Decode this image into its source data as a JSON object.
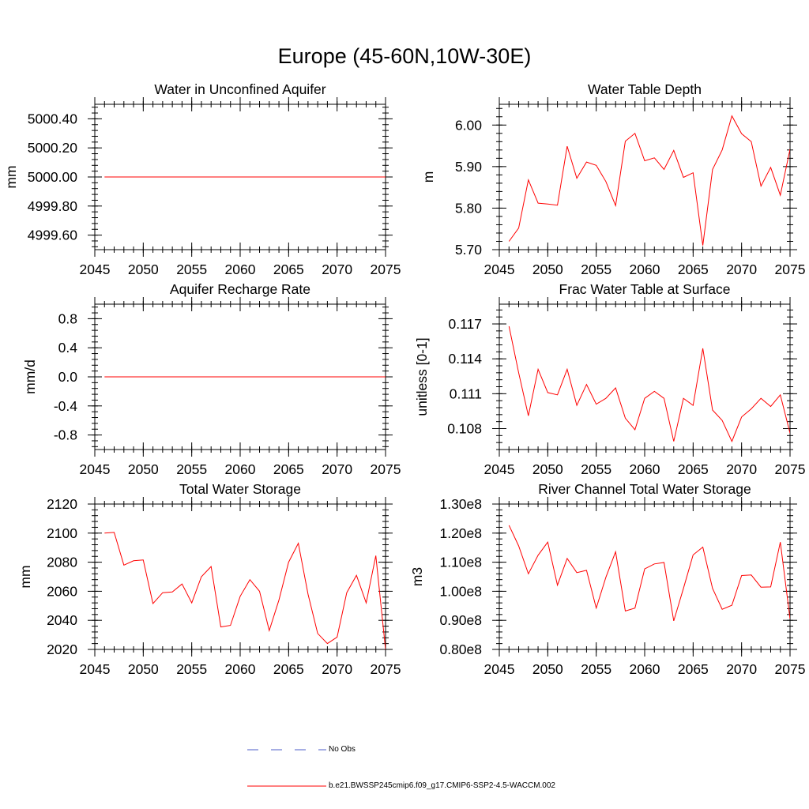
{
  "title": "Europe (45-60N,10W-30E)",
  "colors": {
    "model": "#ff0000",
    "obs": "#4c5ec8",
    "axis": "#000000"
  },
  "legend": {
    "obs_label": "No Obs",
    "model_label": "b.e21.BWSSP245cmip6.f09_g17.CMIP6-SSP2-4.5-WACCM.002"
  },
  "chart_data": [
    {
      "type": "line",
      "title": "Water in Unconfined Aquifer",
      "xlabel": "",
      "ylabel": "mm",
      "xlim": [
        2045,
        2075
      ],
      "ylim": [
        4999.5,
        5000.5
      ],
      "xticks": [
        2045,
        2050,
        2055,
        2060,
        2065,
        2070,
        2075
      ],
      "yticks": [
        4999.6,
        4999.8,
        5000.0,
        5000.2,
        5000.4
      ],
      "ytick_labels": [
        "4999.60",
        "4999.80",
        "5000.00",
        "5000.20",
        "5000.40"
      ],
      "series": [
        {
          "name": "b.e21.BWSSP245cmip6.f09_g17.CMIP6-SSP2-4.5-WACCM.002",
          "x": [
            2046,
            2075
          ],
          "values": [
            5000.0,
            5000.0
          ]
        }
      ]
    },
    {
      "type": "line",
      "title": "Water Table Depth",
      "xlabel": "",
      "ylabel": "m",
      "xlim": [
        2045,
        2075
      ],
      "ylim": [
        5.7,
        6.05
      ],
      "xticks": [
        2045,
        2050,
        2055,
        2060,
        2065,
        2070,
        2075
      ],
      "yticks": [
        5.7,
        5.8,
        5.9,
        6.0
      ],
      "ytick_labels": [
        "5.70",
        "5.80",
        "5.90",
        "6.00"
      ],
      "series": [
        {
          "name": "b.e21.BWSSP245cmip6.f09_g17.CMIP6-SSP2-4.5-WACCM.002",
          "x": [
            2046,
            2047,
            2048,
            2049,
            2050,
            2051,
            2052,
            2053,
            2054,
            2055,
            2056,
            2057,
            2058,
            2059,
            2060,
            2061,
            2062,
            2063,
            2064,
            2065,
            2066,
            2067,
            2068,
            2069,
            2070,
            2071,
            2072,
            2073,
            2074,
            2075
          ],
          "values": [
            5.72,
            5.752,
            5.868,
            5.812,
            5.81,
            5.807,
            5.949,
            5.872,
            5.911,
            5.903,
            5.864,
            5.806,
            5.961,
            5.98,
            5.914,
            5.921,
            5.893,
            5.939,
            5.874,
            5.885,
            5.71,
            5.893,
            5.94,
            6.022,
            5.979,
            5.96,
            5.853,
            5.898,
            5.831,
            5.942
          ]
        }
      ]
    },
    {
      "type": "line",
      "title": "Aquifer Recharge Rate",
      "xlabel": "",
      "ylabel": "mm/d",
      "xlim": [
        2045,
        2075
      ],
      "ylim": [
        -1.0,
        1.0
      ],
      "xticks": [
        2045,
        2050,
        2055,
        2060,
        2065,
        2070,
        2075
      ],
      "yticks": [
        -0.8,
        -0.4,
        0.0,
        0.4,
        0.8
      ],
      "ytick_labels": [
        "-0.8",
        "-0.4",
        "0.0",
        "0.4",
        "0.8"
      ],
      "series": [
        {
          "name": "b.e21.BWSSP245cmip6.f09_g17.CMIP6-SSP2-4.5-WACCM.002",
          "x": [
            2046,
            2075
          ],
          "values": [
            0.0,
            0.0
          ]
        }
      ]
    },
    {
      "type": "line",
      "title": "Frac Water Table at Surface",
      "xlabel": "",
      "ylabel": "unitless [0-1]",
      "xlim": [
        2045,
        2075
      ],
      "ylim": [
        0.1062,
        0.1187
      ],
      "xticks": [
        2045,
        2050,
        2055,
        2060,
        2065,
        2070,
        2075
      ],
      "yticks": [
        0.108,
        0.111,
        0.114,
        0.117
      ],
      "ytick_labels": [
        "0.108",
        "0.111",
        "0.114",
        "0.117"
      ],
      "series": [
        {
          "name": "b.e21.BWSSP245cmip6.f09_g17.CMIP6-SSP2-4.5-WACCM.002",
          "x": [
            2046,
            2047,
            2048,
            2049,
            2050,
            2051,
            2052,
            2053,
            2054,
            2055,
            2056,
            2057,
            2058,
            2059,
            2060,
            2061,
            2062,
            2063,
            2064,
            2065,
            2066,
            2067,
            2068,
            2069,
            2070,
            2071,
            2072,
            2073,
            2074,
            2075
          ],
          "values": [
            0.1168,
            0.1128,
            0.1091,
            0.1131,
            0.1111,
            0.1109,
            0.1131,
            0.11,
            0.1118,
            0.1101,
            0.1106,
            0.1115,
            0.1089,
            0.1079,
            0.1106,
            0.1112,
            0.1106,
            0.1069,
            0.1106,
            0.11,
            0.1149,
            0.1096,
            0.1087,
            0.1069,
            0.109,
            0.1097,
            0.1106,
            0.1099,
            0.1109,
            0.1076
          ]
        }
      ]
    },
    {
      "type": "line",
      "title": "Total Water Storage",
      "xlabel": "",
      "ylabel": "mm",
      "xlim": [
        2045,
        2075
      ],
      "ylim": [
        2020,
        2120
      ],
      "xticks": [
        2045,
        2050,
        2055,
        2060,
        2065,
        2070,
        2075
      ],
      "yticks": [
        2020,
        2040,
        2060,
        2080,
        2100,
        2120
      ],
      "ytick_labels": [
        "2020",
        "2040",
        "2060",
        "2080",
        "2100",
        "2120"
      ],
      "series": [
        {
          "name": "b.e21.BWSSP245cmip6.f09_g17.CMIP6-SSP2-4.5-WACCM.002",
          "x": [
            2046,
            2047,
            2048,
            2049,
            2050,
            2051,
            2052,
            2053,
            2054,
            2055,
            2056,
            2057,
            2058,
            2059,
            2060,
            2061,
            2062,
            2063,
            2064,
            2065,
            2066,
            2067,
            2068,
            2069,
            2070,
            2071,
            2072,
            2073,
            2074,
            2075
          ],
          "values": [
            2100,
            2100.5,
            2078,
            2081,
            2081.5,
            2051.5,
            2059,
            2059.5,
            2065,
            2052,
            2070,
            2077,
            2035.5,
            2036.5,
            2056.5,
            2068,
            2060,
            2033,
            2054,
            2080,
            2093,
            2058,
            2031,
            2024,
            2028.5,
            2059,
            2071,
            2052,
            2084.5,
            2020
          ]
        }
      ]
    },
    {
      "type": "line",
      "title": "River Channel Total Water Storage",
      "xlabel": "",
      "ylabel": "m3",
      "xlim": [
        2045,
        2075
      ],
      "ylim": [
        0.8,
        1.3
      ],
      "xticks": [
        2045,
        2050,
        2055,
        2060,
        2065,
        2070,
        2075
      ],
      "yticks": [
        0.8,
        0.9,
        1.0,
        1.1,
        1.2,
        1.3
      ],
      "ytick_labels": [
        "0.80e8",
        "0.90e8",
        "1.00e8",
        "1.10e8",
        "1.20e8",
        "1.30e8"
      ],
      "series": [
        {
          "name": "b.e21.BWSSP245cmip6.f09_g17.CMIP6-SSP2-4.5-WACCM.002",
          "x": [
            2046,
            2047,
            2048,
            2049,
            2050,
            2051,
            2052,
            2053,
            2054,
            2055,
            2056,
            2057,
            2058,
            2059,
            2060,
            2061,
            2062,
            2063,
            2064,
            2065,
            2066,
            2067,
            2068,
            2069,
            2070,
            2071,
            2072,
            2073,
            2074,
            2075
          ],
          "values": [
            1.227,
            1.156,
            1.06,
            1.124,
            1.169,
            1.021,
            1.113,
            1.064,
            1.072,
            0.942,
            1.048,
            1.136,
            0.932,
            0.942,
            1.077,
            1.094,
            1.099,
            0.898,
            1.01,
            1.125,
            1.152,
            1.01,
            0.938,
            0.952,
            1.054,
            1.056,
            1.014,
            1.015,
            1.169,
            0.905
          ]
        }
      ]
    }
  ]
}
